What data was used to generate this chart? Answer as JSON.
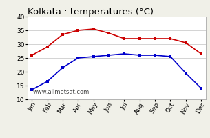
{
  "title": "Kolkata : temperatures (°C)",
  "months": [
    "Jan",
    "Feb",
    "Mar",
    "Apr",
    "May",
    "Jun",
    "Jul",
    "Aug",
    "Sep",
    "Oct",
    "Nov",
    "Dec"
  ],
  "max_temps": [
    26.0,
    29.0,
    33.5,
    35.0,
    35.5,
    34.0,
    32.0,
    32.0,
    32.0,
    32.0,
    30.5,
    26.5
  ],
  "min_temps_low": [
    13.5,
    16.5,
    21.5,
    25.0,
    25.5,
    26.0,
    26.5,
    26.0,
    26.0,
    25.5,
    19.5,
    14.0
  ],
  "red_color": "#cc0000",
  "blue_color": "#0000cc",
  "marker": "s",
  "markersize": 2.5,
  "linewidth": 1.2,
  "ylim": [
    10,
    40
  ],
  "yticks": [
    10,
    15,
    20,
    25,
    30,
    35,
    40
  ],
  "background_color": "#f0f0e8",
  "plot_bg_color": "#ffffff",
  "grid_color": "#cccccc",
  "watermark": "www.allmetsat.com",
  "title_fontsize": 9.5,
  "tick_fontsize": 6.5,
  "watermark_fontsize": 6
}
